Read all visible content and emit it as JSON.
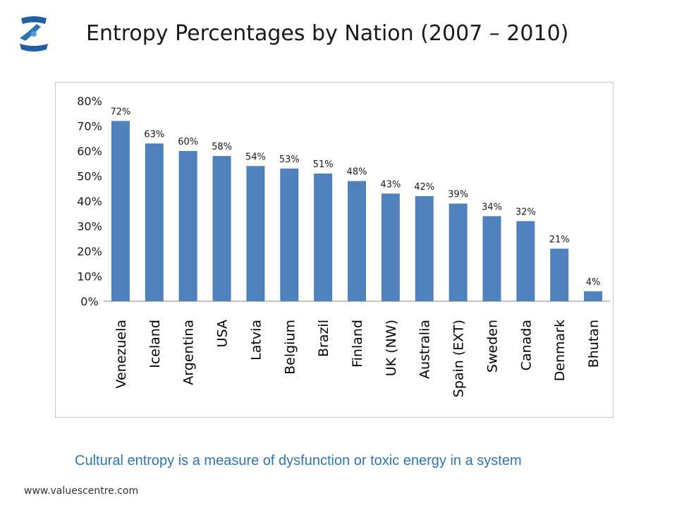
{
  "page": {
    "title": "Entropy Percentages by Nation (2007 – 2010)",
    "caption": "Cultural entropy is a measure of dysfunction or toxic energy in a system",
    "footer": "www.valuescentre.com",
    "logo_icon": "valuescentre-logo-icon"
  },
  "colors": {
    "bar": "#4f81bd",
    "caption": "#2e75b6",
    "axis": "#888888",
    "text": "#1a1a1a"
  },
  "chart_data": {
    "type": "bar",
    "title": "Entropy Percentages by Nation (2007 – 2010)",
    "xlabel": "",
    "ylabel": "",
    "ylim": [
      0,
      80
    ],
    "y_ticks": [
      0,
      10,
      20,
      30,
      40,
      50,
      60,
      70,
      80
    ],
    "y_tick_labels": [
      "0%",
      "10%",
      "20%",
      "30%",
      "40%",
      "50%",
      "60%",
      "70%",
      "80%"
    ],
    "grid": false,
    "categories": [
      "Venezuela",
      "Iceland",
      "Argentina",
      "USA",
      "Latvia",
      "Belgium",
      "Brazil",
      "Finland",
      "UK (NW)",
      "Australia",
      "Spain (EXT)",
      "Sweden",
      "Canada",
      "Denmark",
      "Bhutan"
    ],
    "values": [
      72,
      63,
      60,
      58,
      54,
      53,
      51,
      48,
      43,
      42,
      39,
      34,
      32,
      21,
      4
    ],
    "data_labels": [
      "72%",
      "63%",
      "60%",
      "58%",
      "54%",
      "53%",
      "51%",
      "48%",
      "43%",
      "42%",
      "39%",
      "34%",
      "32%",
      "21%",
      "4%"
    ]
  }
}
